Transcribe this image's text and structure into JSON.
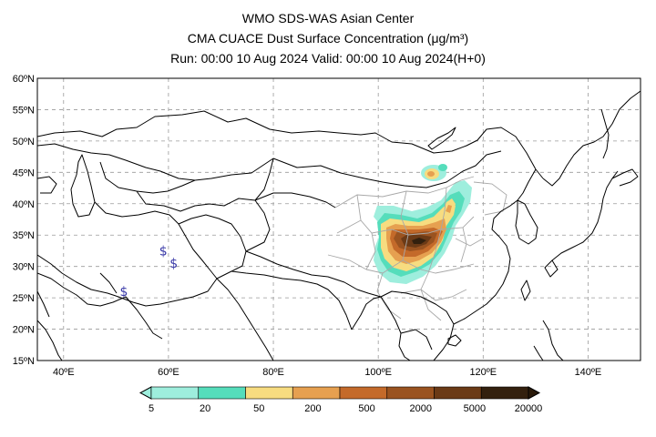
{
  "header": {
    "line1": "WMO SDS-WAS Asian Center",
    "line2": "CMA CUACE Dust Surface Concentration (μg/m³)",
    "line3": "Run: 00:00 10 Aug 2024    Valid: 00:00 10 Aug 2024(H+0)"
  },
  "map": {
    "lat_ticks": [
      "60ºN",
      "55ºN",
      "50ºN",
      "45ºN",
      "40ºN",
      "35ºN",
      "30ºN",
      "25ºN",
      "20ºN",
      "15ºN"
    ],
    "lon_ticks": [
      "40ºE",
      "60ºE",
      "80ºE",
      "100ºE",
      "120ºE",
      "140ºE"
    ],
    "lat_range": [
      15,
      60
    ],
    "lon_range": [
      35,
      150
    ],
    "grid": "dashed",
    "markers": [
      {
        "symbol": "$",
        "lon": 59,
        "lat": 32.5
      },
      {
        "symbol": "$",
        "lon": 61,
        "lat": 30.5
      },
      {
        "symbol": "$",
        "lon": 51.5,
        "lat": 26
      }
    ]
  },
  "colorbar": {
    "labels": [
      "5",
      "20",
      "50",
      "200",
      "500",
      "2000",
      "5000",
      "20000"
    ],
    "colors": [
      "#9eeedd",
      "#55ddbb",
      "#f7dc80",
      "#e6a050",
      "#c46a2a",
      "#9a5320",
      "#6b3a16",
      "#33200e"
    ],
    "extend_low_color": "#ffffff",
    "extend_high_color": "#2a1a0a"
  },
  "chart_data": {
    "type": "heatmap",
    "title": "CMA CUACE Dust Surface Concentration (μg/m³)",
    "levels": [
      5,
      20,
      50,
      200,
      500,
      2000,
      5000,
      20000
    ],
    "x_range": [
      35,
      150
    ],
    "y_range": [
      15,
      60
    ],
    "dust_region": {
      "lon_min": 97,
      "lon_max": 113,
      "lat_min": 29,
      "lat_max": 42
    }
  }
}
